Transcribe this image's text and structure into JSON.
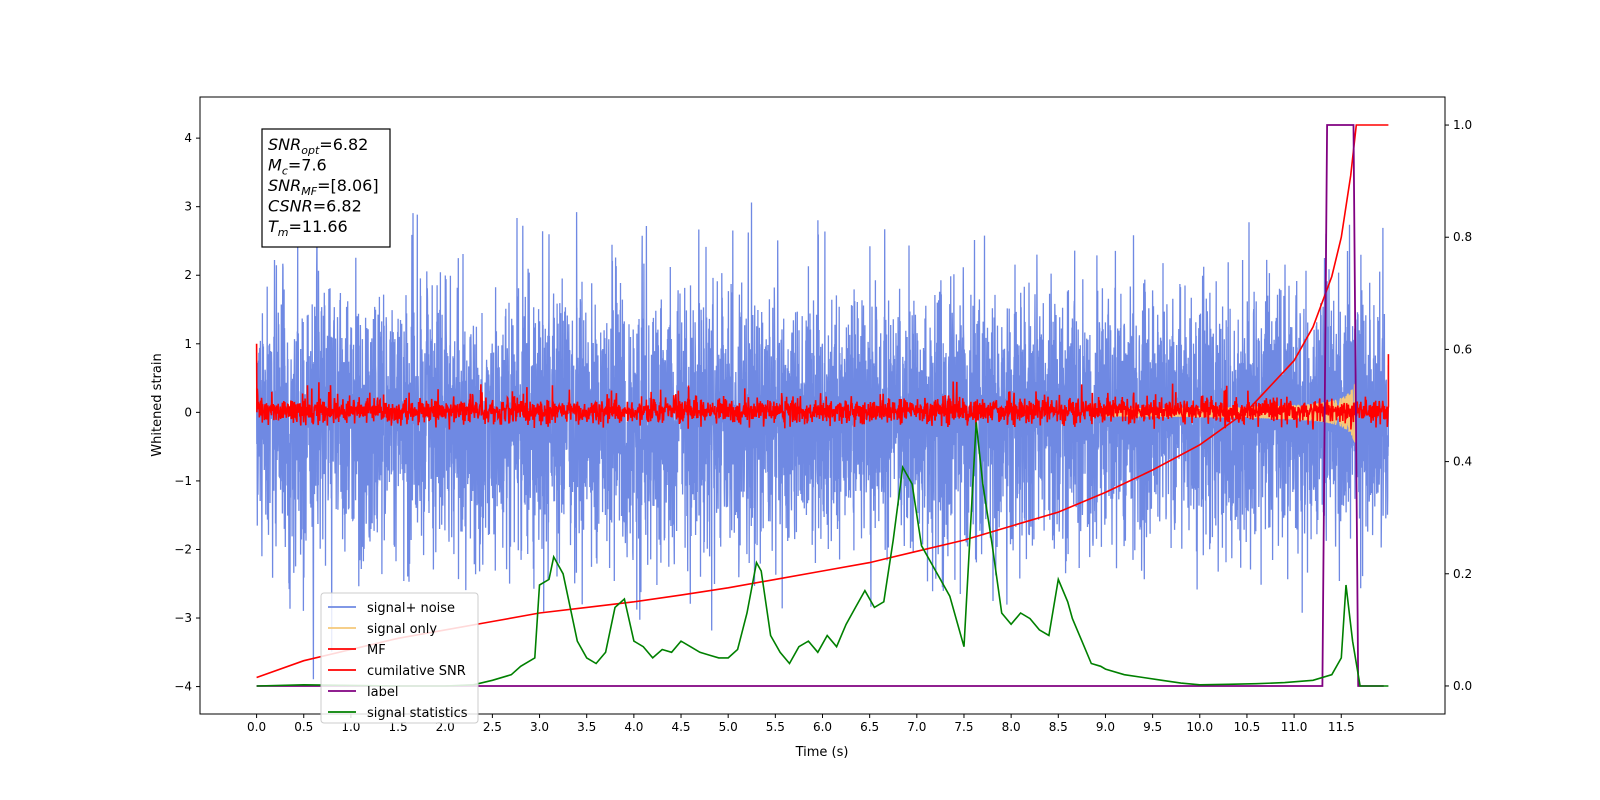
{
  "chart_data": {
    "type": "line",
    "title": "",
    "xlabel": "Time (s)",
    "ylabel": "Whitened strain",
    "xlim": [
      -0.6,
      12.6
    ],
    "ylim": [
      -4.4,
      4.6
    ],
    "y2lim": [
      -0.05,
      1.05
    ],
    "xticks": [
      "0.0",
      "0.5",
      "1.0",
      "1.5",
      "2.0",
      "2.5",
      "3.0",
      "3.5",
      "4.0",
      "4.5",
      "5.0",
      "5.5",
      "6.0",
      "6.5",
      "7.0",
      "7.5",
      "8.0",
      "8.5",
      "9.0",
      "9.5",
      "10.0",
      "10.5",
      "11.0",
      "11.5"
    ],
    "yticks": [
      "4",
      "3",
      "2",
      "1",
      "0",
      "−1",
      "−2",
      "−3",
      "−4"
    ],
    "y2ticks": [
      "1.0",
      "0.8",
      "0.6",
      "0.4",
      "0.2",
      "0.0"
    ],
    "grid": false,
    "legend_position": "lower-left",
    "annotation": {
      "lines": [
        {
          "name": "SNR",
          "sub": "opt",
          "value": "=6.82"
        },
        {
          "name": "M",
          "sub": "c",
          "value": "=7.6"
        },
        {
          "name": "SNR",
          "sub": "MF",
          "value": "=[8.06]"
        },
        {
          "name": "CSNR",
          "sub": "",
          "value": "=6.82"
        },
        {
          "name": "T",
          "sub": "m",
          "value": "=11.66"
        }
      ]
    },
    "series": [
      {
        "name": "signal+ noise",
        "axis": "left",
        "color": "#6f89e3",
        "description_of_values": "white noise band, roughly -2.5..+2.5, spikes to about +4.2 and -4",
        "x_range": [
          0.0,
          12.0
        ]
      },
      {
        "name": "signal only",
        "axis": "left",
        "color": "#f5c87a",
        "chirp": {
          "t_merge": 11.66,
          "amplitude_at_merge": 0.5
        }
      },
      {
        "name": "MF",
        "axis": "left",
        "color": "#ff0000",
        "description_of_values": "matched-filter output centered near 0, band about -0.2..+0.3",
        "start_value": 1.0,
        "end_value": 0.85
      },
      {
        "name": "cumilative SNR",
        "axis": "right",
        "color": "#ff0000",
        "x": [
          0.0,
          0.5,
          1.0,
          1.5,
          2.0,
          2.5,
          3.0,
          3.5,
          4.0,
          4.5,
          5.0,
          5.5,
          6.0,
          6.5,
          7.0,
          7.5,
          8.0,
          8.5,
          9.0,
          9.5,
          10.0,
          10.5,
          11.0,
          11.2,
          11.4,
          11.5,
          11.6,
          11.66,
          12.0
        ],
        "y": [
          0.015,
          0.045,
          0.065,
          0.085,
          0.1,
          0.115,
          0.13,
          0.14,
          0.15,
          0.162,
          0.175,
          0.19,
          0.205,
          0.22,
          0.24,
          0.26,
          0.285,
          0.31,
          0.345,
          0.385,
          0.43,
          0.49,
          0.58,
          0.64,
          0.73,
          0.8,
          0.91,
          1.0,
          1.0
        ]
      },
      {
        "name": "label",
        "axis": "right",
        "color": "#800080",
        "x": [
          0.0,
          11.3,
          11.35,
          11.63,
          11.68,
          11.95
        ],
        "y": [
          0.0,
          0.0,
          1.0,
          1.0,
          0.0,
          0.0
        ]
      },
      {
        "name": "signal statistics",
        "axis": "right",
        "color": "#008000",
        "x": [
          0.0,
          0.5,
          1.0,
          1.5,
          2.0,
          2.3,
          2.5,
          2.7,
          2.8,
          2.95,
          3.0,
          3.1,
          3.15,
          3.25,
          3.4,
          3.5,
          3.6,
          3.7,
          3.8,
          3.9,
          4.0,
          4.1,
          4.2,
          4.3,
          4.4,
          4.5,
          4.6,
          4.7,
          4.8,
          4.9,
          5.0,
          5.1,
          5.2,
          5.3,
          5.35,
          5.45,
          5.55,
          5.65,
          5.75,
          5.85,
          5.95,
          6.05,
          6.15,
          6.25,
          6.35,
          6.45,
          6.55,
          6.65,
          6.75,
          6.85,
          6.95,
          7.05,
          7.15,
          7.25,
          7.35,
          7.5,
          7.63,
          7.7,
          7.8,
          7.9,
          8.0,
          8.1,
          8.2,
          8.3,
          8.4,
          8.5,
          8.6,
          8.65,
          8.75,
          8.85,
          8.95,
          9.0,
          9.2,
          9.4,
          9.6,
          9.8,
          10.0,
          10.3,
          10.6,
          10.9,
          11.2,
          11.4,
          11.5,
          11.55,
          11.62,
          11.7,
          12.0
        ],
        "y": [
          0.0,
          0.002,
          0.001,
          0.0,
          0.0,
          0.002,
          0.01,
          0.02,
          0.035,
          0.05,
          0.18,
          0.19,
          0.23,
          0.2,
          0.08,
          0.05,
          0.04,
          0.06,
          0.14,
          0.155,
          0.08,
          0.07,
          0.05,
          0.065,
          0.06,
          0.08,
          0.07,
          0.06,
          0.055,
          0.05,
          0.05,
          0.065,
          0.13,
          0.22,
          0.205,
          0.09,
          0.06,
          0.04,
          0.07,
          0.08,
          0.06,
          0.09,
          0.07,
          0.11,
          0.14,
          0.17,
          0.14,
          0.15,
          0.26,
          0.39,
          0.36,
          0.25,
          0.22,
          0.19,
          0.16,
          0.07,
          0.47,
          0.36,
          0.25,
          0.13,
          0.11,
          0.13,
          0.12,
          0.1,
          0.09,
          0.19,
          0.15,
          0.12,
          0.08,
          0.04,
          0.035,
          0.03,
          0.02,
          0.015,
          0.01,
          0.005,
          0.002,
          0.003,
          0.004,
          0.006,
          0.01,
          0.02,
          0.05,
          0.18,
          0.08,
          0.0,
          0.0
        ]
      }
    ]
  }
}
